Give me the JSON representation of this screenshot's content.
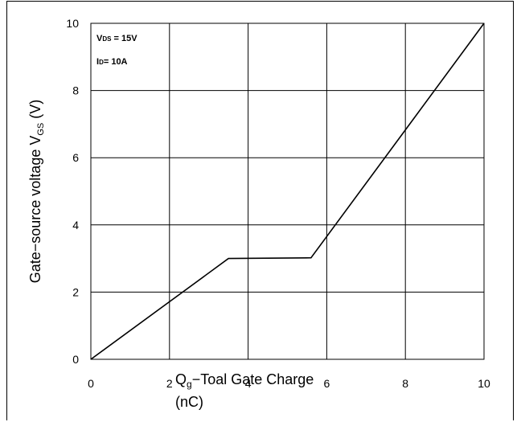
{
  "chart_data": {
    "type": "line",
    "x": [
      0,
      3.5,
      5.6,
      10
    ],
    "series": [
      {
        "values": [
          0,
          3.0,
          3.02,
          10
        ]
      }
    ],
    "xlim": [
      0,
      10
    ],
    "ylim": [
      0,
      10
    ],
    "xticks": [
      0,
      2,
      4,
      6,
      8,
      10
    ],
    "yticks": [
      0,
      2,
      4,
      6,
      8,
      10
    ],
    "xtick_labels": [
      "0",
      "2",
      "4",
      "6",
      "8",
      "10"
    ],
    "ytick_labels": [
      "0",
      "2",
      "4",
      "6",
      "8",
      "10"
    ],
    "ylabel_main": "Gate−source voltage V",
    "ylabel_sub": "GS",
    "ylabel_unit": " (V)",
    "xlabel_q": "Q",
    "xlabel_sub": "g",
    "xlabel_main": "−Toal Gate Charge",
    "xlabel_unit": "(nC)",
    "grid": true,
    "annotations": {
      "vds_v": "V",
      "vds_sub": "DS",
      "vds_rest": " = 15V",
      "id_i": "I",
      "id_sub": "D",
      "id_rest": "= 10A"
    },
    "colors": {
      "line": "#000000",
      "grid": "#000000"
    }
  }
}
